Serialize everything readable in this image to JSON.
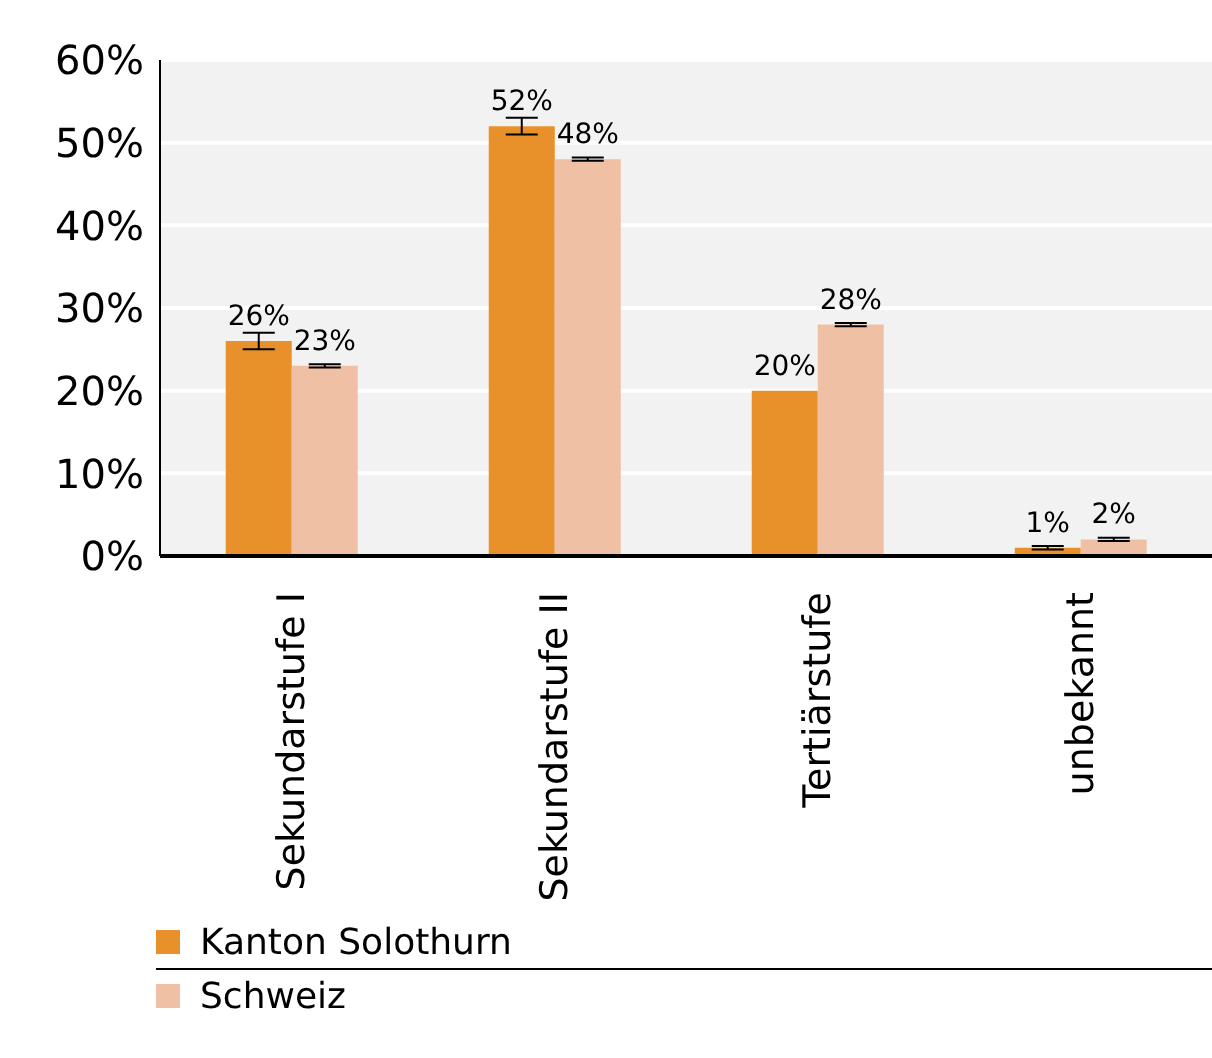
{
  "chart_data": {
    "type": "bar",
    "categories": [
      "Sekundarstufe I",
      "Sekundarstufe II",
      "Tertiärstufe",
      "unbekannt"
    ],
    "series": [
      {
        "name": "Kanton Solothurn",
        "color": "#e8912a",
        "values": [
          26,
          52,
          20,
          1
        ],
        "value_labels": [
          "26%",
          "52%",
          "20%",
          "1%"
        ],
        "errors": [
          1,
          1,
          null,
          0.2
        ]
      },
      {
        "name": "Schweiz",
        "color": "#f0c0a4",
        "values": [
          23,
          48,
          28,
          2
        ],
        "value_labels": [
          "23%",
          "48%",
          "28%",
          "2%"
        ],
        "errors": [
          0.2,
          0.2,
          0.2,
          0.2
        ]
      }
    ],
    "ylim": [
      0,
      60
    ],
    "yticks": [
      {
        "value": 0,
        "label": "0%"
      },
      {
        "value": 10,
        "label": "10%"
      },
      {
        "value": 20,
        "label": "20%"
      },
      {
        "value": 30,
        "label": "30%"
      },
      {
        "value": 40,
        "label": "40%"
      },
      {
        "value": 50,
        "label": "50%"
      },
      {
        "value": 60,
        "label": "60%"
      }
    ],
    "grid": "y",
    "legend": "bottom"
  }
}
